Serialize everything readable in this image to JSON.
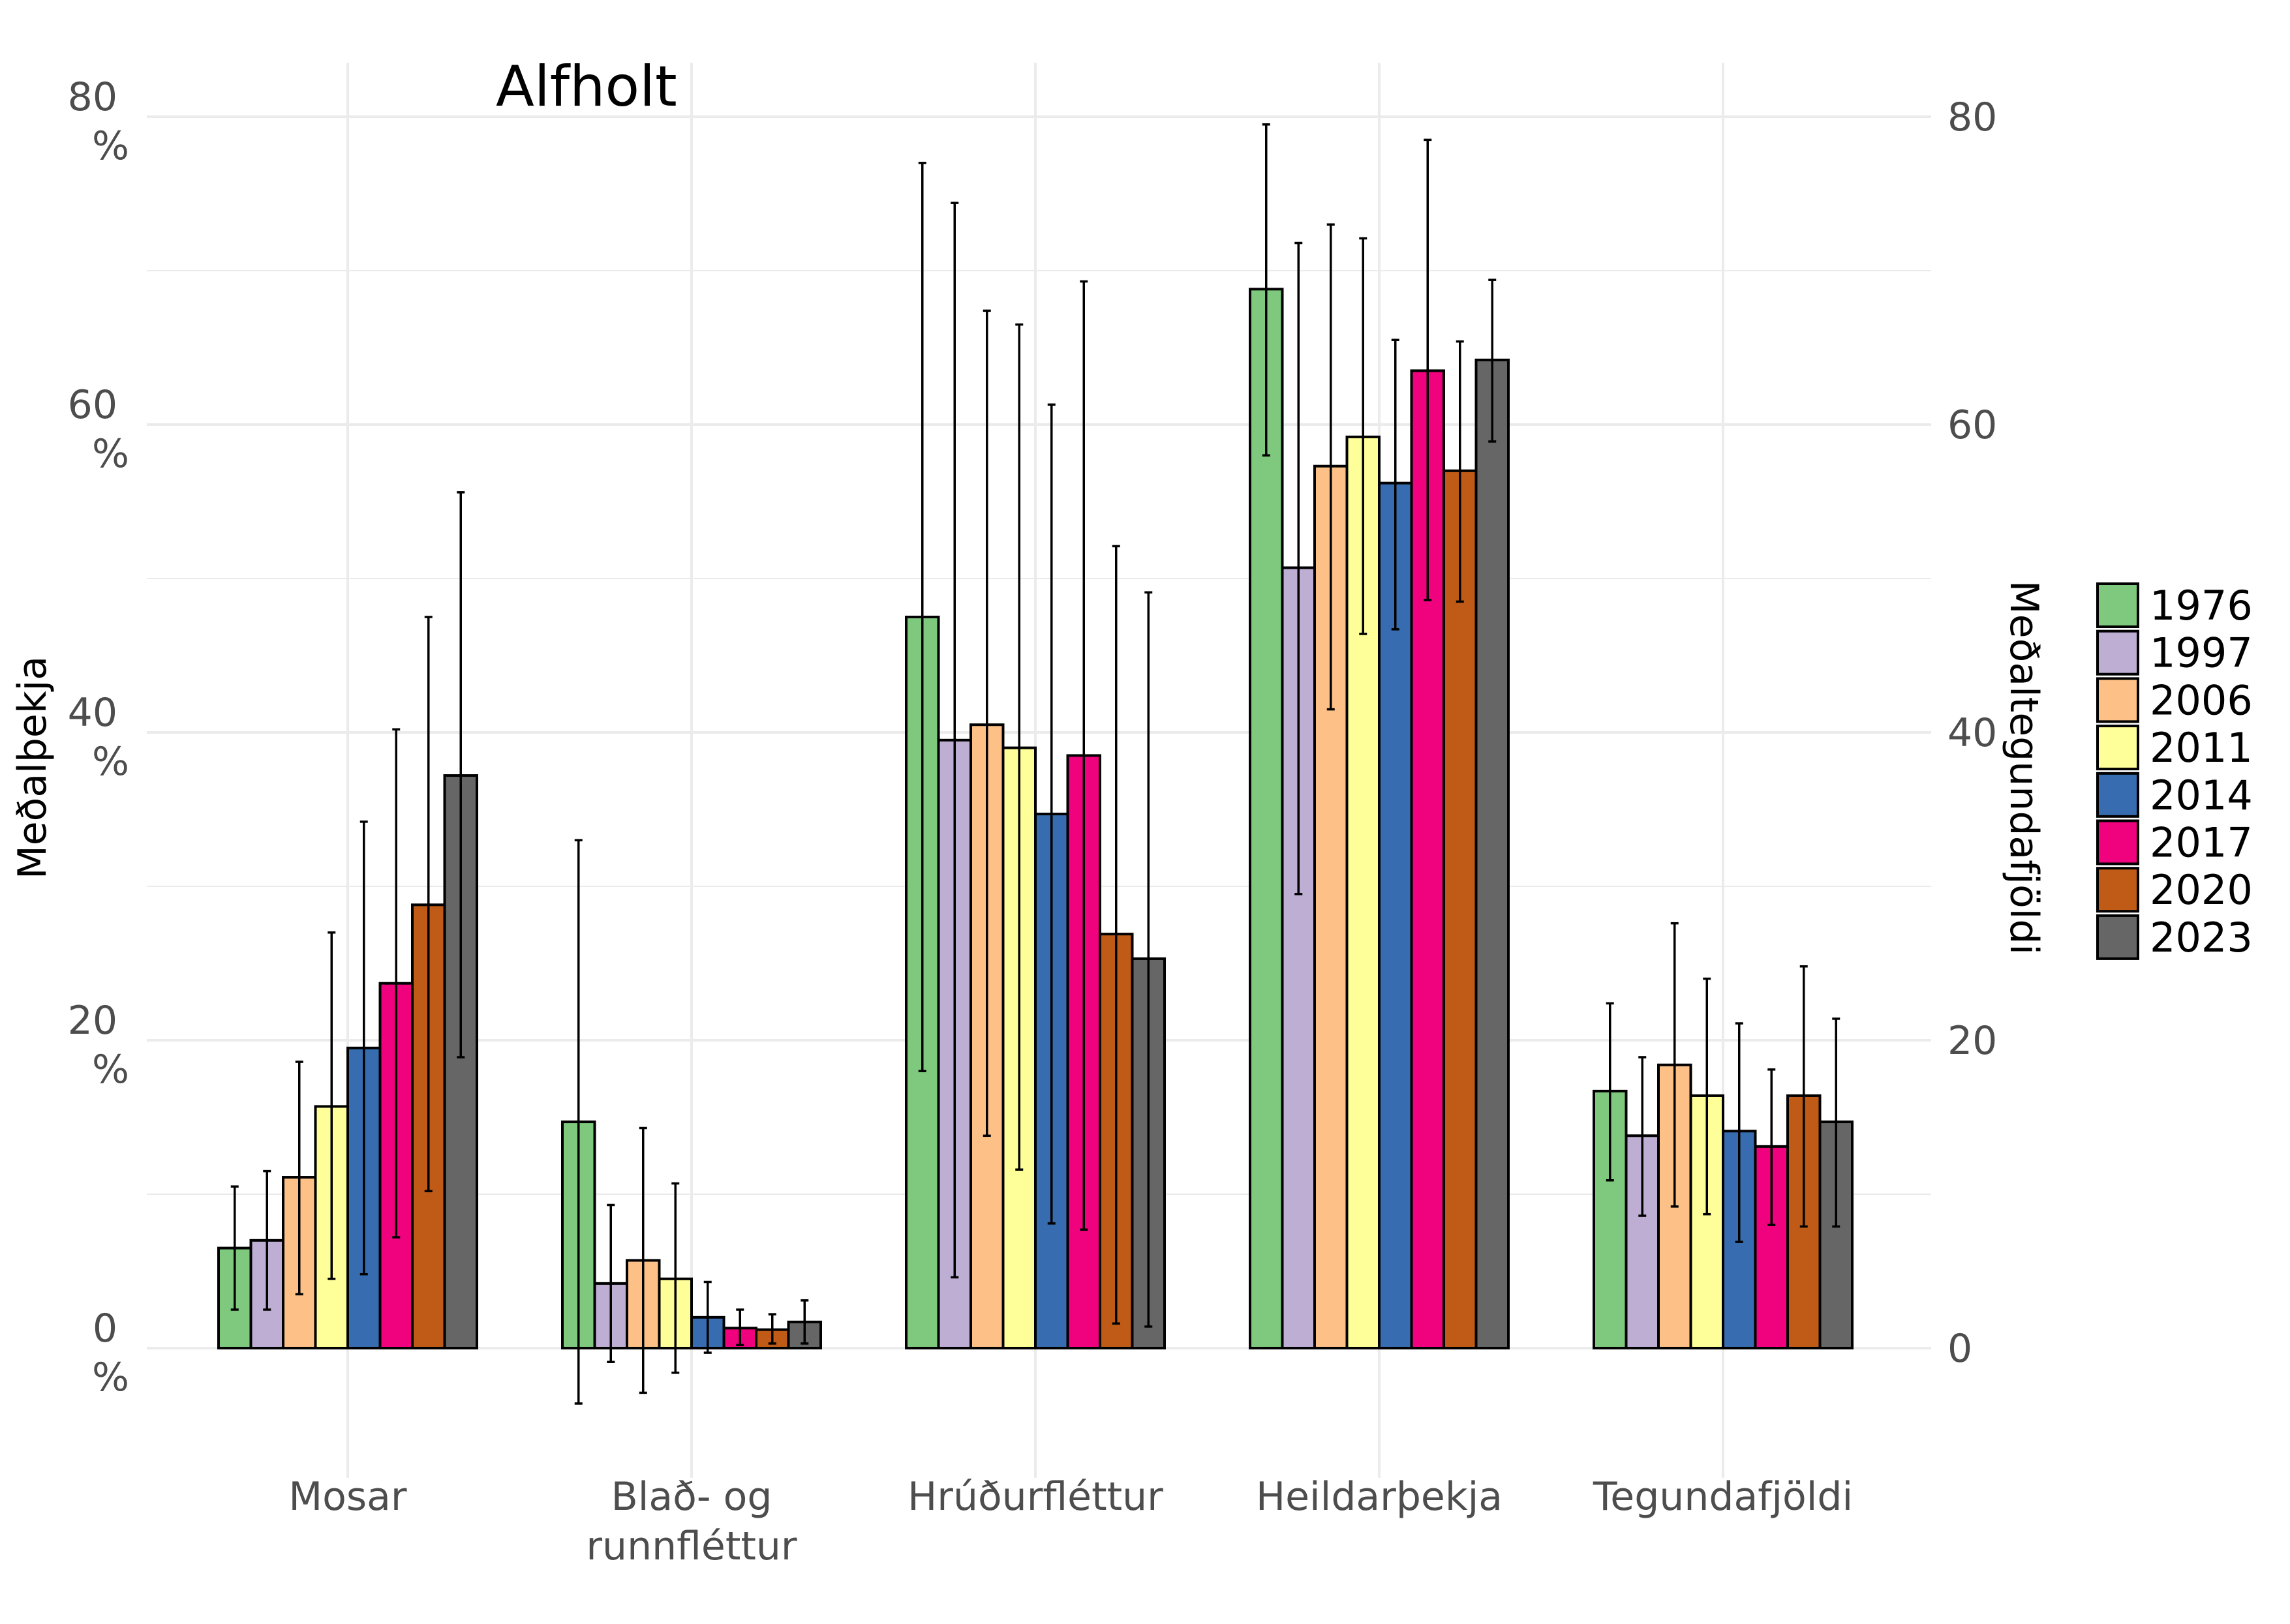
{
  "chart_data": {
    "type": "bar",
    "title": "Alfholt",
    "ylabel_left": "Meðalþekja",
    "ylabel_right": "Meðaltegundafjöldi",
    "categories": [
      [
        "Mosar"
      ],
      [
        "Blað- og",
        "runnfléttur"
      ],
      [
        "Hrúðurfléttur"
      ],
      [
        "Heildarþekja"
      ],
      [
        "Tegundafjöldi"
      ]
    ],
    "ylim": [
      -8,
      80
    ],
    "y_ticks_left": [
      {
        "value": 0,
        "label": [
          "0",
          "%"
        ]
      },
      {
        "value": 20,
        "label": [
          "20",
          "%"
        ]
      },
      {
        "value": 40,
        "label": [
          "40",
          "%"
        ]
      },
      {
        "value": 60,
        "label": [
          "60",
          "%"
        ]
      },
      {
        "value": 80,
        "label": [
          "80",
          "%"
        ]
      }
    ],
    "y_ticks_right": [
      {
        "value": 0,
        "label": "0"
      },
      {
        "value": 20,
        "label": "20"
      },
      {
        "value": 40,
        "label": "40"
      },
      {
        "value": 60,
        "label": "60"
      },
      {
        "value": 80,
        "label": "80"
      }
    ],
    "grid": true,
    "legend_position": "right",
    "series": [
      {
        "name": "1976",
        "color": "#7fc97f",
        "values": [
          6.5,
          14.7,
          47.5,
          68.8,
          16.7
        ],
        "err_low": [
          2.5,
          -3.6,
          18.0,
          58.0,
          10.9
        ],
        "err_high": [
          10.5,
          33.0,
          77.0,
          79.5,
          22.4
        ]
      },
      {
        "name": "1997",
        "color": "#beaed4",
        "values": [
          7.0,
          4.2,
          39.5,
          50.7,
          13.8
        ],
        "err_low": [
          2.5,
          -0.9,
          4.6,
          29.5,
          8.6
        ],
        "err_high": [
          11.5,
          9.3,
          74.4,
          71.8,
          18.9
        ]
      },
      {
        "name": "2006",
        "color": "#fdc086",
        "values": [
          11.1,
          5.7,
          40.5,
          57.3,
          18.4
        ],
        "err_low": [
          3.5,
          -2.9,
          13.8,
          41.5,
          9.2
        ],
        "err_high": [
          18.6,
          14.3,
          67.4,
          73.0,
          27.6
        ]
      },
      {
        "name": "2011",
        "color": "#ffff99",
        "values": [
          15.7,
          4.5,
          39.0,
          59.2,
          16.4
        ],
        "err_low": [
          4.5,
          -1.6,
          11.6,
          46.4,
          8.7
        ],
        "err_high": [
          27.0,
          10.7,
          66.5,
          72.1,
          24.0
        ]
      },
      {
        "name": "2014",
        "color": "#386cb0",
        "values": [
          19.5,
          2.0,
          34.7,
          56.2,
          14.1
        ],
        "err_low": [
          4.8,
          -0.3,
          8.1,
          46.7,
          6.9
        ],
        "err_high": [
          34.2,
          4.3,
          61.3,
          65.5,
          21.1
        ]
      },
      {
        "name": "2017",
        "color": "#f0027f",
        "values": [
          23.7,
          1.3,
          38.5,
          63.5,
          13.1
        ],
        "err_low": [
          7.2,
          0.2,
          7.7,
          48.6,
          8.0
        ],
        "err_high": [
          40.2,
          2.5,
          69.3,
          78.5,
          18.1
        ]
      },
      {
        "name": "2020",
        "color": "#bf5b17",
        "values": [
          28.8,
          1.2,
          26.9,
          57.0,
          16.4
        ],
        "err_low": [
          10.2,
          0.3,
          1.6,
          48.5,
          7.9
        ],
        "err_high": [
          47.5,
          2.2,
          52.1,
          65.4,
          24.8
        ]
      },
      {
        "name": "2023",
        "color": "#666666",
        "values": [
          37.2,
          1.7,
          25.3,
          64.2,
          14.7
        ],
        "err_low": [
          18.9,
          0.3,
          1.4,
          58.9,
          7.9
        ],
        "err_high": [
          55.6,
          3.1,
          49.1,
          69.4,
          21.4
        ]
      }
    ]
  }
}
